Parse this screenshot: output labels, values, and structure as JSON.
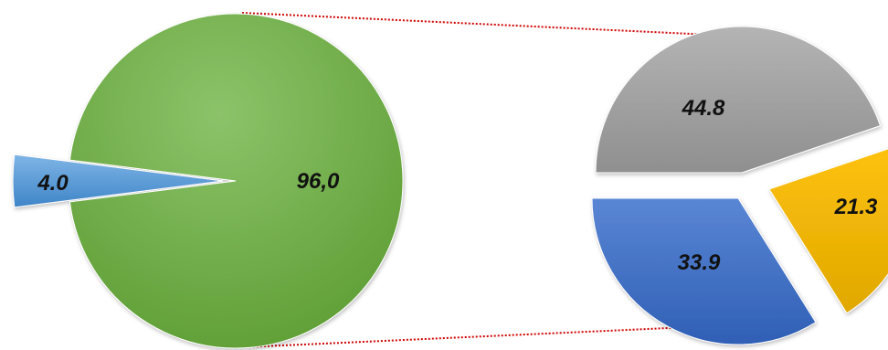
{
  "chart_data": [
    {
      "type": "pie",
      "title": "",
      "slices": [
        {
          "label": "96,0",
          "value": 96.0,
          "color": "#70ad47"
        },
        {
          "label": "4.0",
          "value": 4.0,
          "color": "#5b9bd5"
        }
      ]
    },
    {
      "type": "pie",
      "title": "",
      "slices": [
        {
          "label": "44.8",
          "value": 44.8,
          "color": "#a5a5a5"
        },
        {
          "label": "21.3",
          "value": 21.3,
          "color": "#ffc000"
        },
        {
          "label": "33.9",
          "value": 33.9,
          "color": "#4472c4"
        }
      ]
    }
  ],
  "connector_color": "#d00000"
}
